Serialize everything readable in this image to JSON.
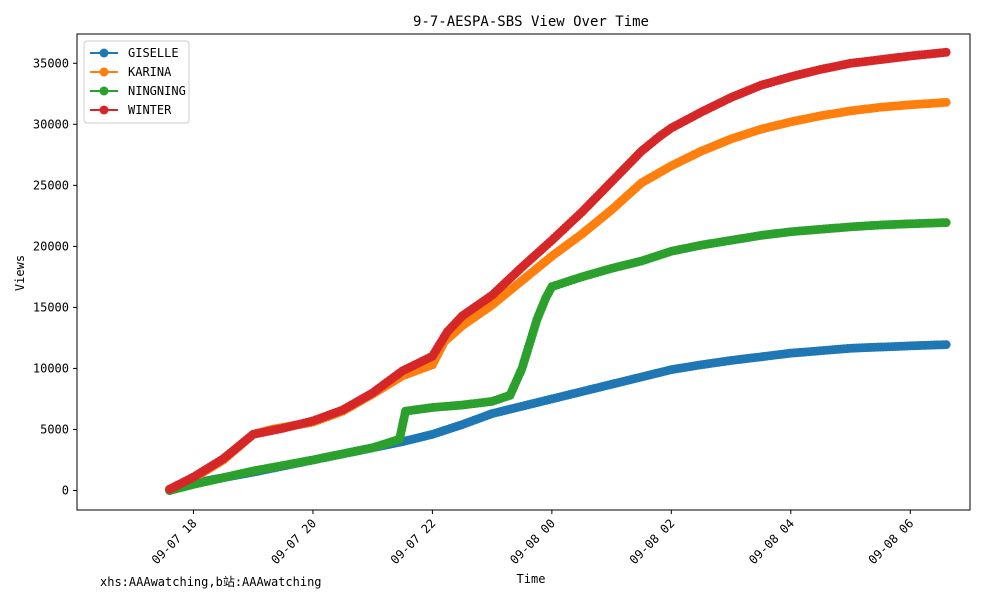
{
  "chart_data": {
    "type": "line",
    "title": "9-7-AESPA-SBS View Over Time",
    "xlabel": "Time",
    "ylabel": "Views",
    "x_ticks": [
      "09-07 18",
      "09-07 20",
      "09-07 22",
      "09-08 00",
      "09-08 02",
      "09-08 04",
      "09-08 06"
    ],
    "x_tick_hours": [
      18,
      20,
      22,
      24,
      26,
      28,
      30
    ],
    "xlim": [
      16.05,
      31.0
    ],
    "ylim": [
      -1600,
      37400
    ],
    "y_ticks": [
      0,
      5000,
      10000,
      15000,
      20000,
      25000,
      30000,
      35000
    ],
    "legend_position": "upper-left",
    "grid": false,
    "series": [
      {
        "name": "GISELLE",
        "color": "#1f77b4",
        "points": [
          [
            17.6,
            0
          ],
          [
            18.0,
            600
          ],
          [
            19.0,
            1500
          ],
          [
            20.0,
            2500
          ],
          [
            21.0,
            3500
          ],
          [
            21.5,
            4000
          ],
          [
            22.0,
            4600
          ],
          [
            22.5,
            5400
          ],
          [
            23.0,
            6300
          ],
          [
            23.5,
            6900
          ],
          [
            24.0,
            7500
          ],
          [
            24.5,
            8100
          ],
          [
            25.0,
            8700
          ],
          [
            25.5,
            9300
          ],
          [
            26.0,
            9900
          ],
          [
            26.5,
            10300
          ],
          [
            27.0,
            10650
          ],
          [
            27.5,
            10950
          ],
          [
            28.0,
            11250
          ],
          [
            28.5,
            11450
          ],
          [
            29.0,
            11650
          ],
          [
            29.5,
            11750
          ],
          [
            30.0,
            11850
          ],
          [
            30.6,
            11950
          ]
        ]
      },
      {
        "name": "KARINA",
        "color": "#ff7f0e",
        "points": [
          [
            17.6,
            100
          ],
          [
            18.0,
            1000
          ],
          [
            18.5,
            2500
          ],
          [
            19.0,
            4600
          ],
          [
            19.3,
            5000
          ],
          [
            20.0,
            5600
          ],
          [
            20.5,
            6500
          ],
          [
            21.0,
            7900
          ],
          [
            21.5,
            9400
          ],
          [
            22.0,
            10300
          ],
          [
            22.2,
            12200
          ],
          [
            22.5,
            13500
          ],
          [
            23.0,
            15200
          ],
          [
            23.5,
            17200
          ],
          [
            24.0,
            19200
          ],
          [
            24.5,
            21000
          ],
          [
            25.0,
            23000
          ],
          [
            25.5,
            25200
          ],
          [
            26.0,
            26600
          ],
          [
            26.5,
            27800
          ],
          [
            27.0,
            28800
          ],
          [
            27.5,
            29600
          ],
          [
            28.0,
            30200
          ],
          [
            28.5,
            30700
          ],
          [
            29.0,
            31100
          ],
          [
            29.5,
            31400
          ],
          [
            30.0,
            31600
          ],
          [
            30.6,
            31800
          ]
        ]
      },
      {
        "name": "NINGNING",
        "color": "#2ca02c",
        "points": [
          [
            17.6,
            0
          ],
          [
            18.0,
            500
          ],
          [
            19.0,
            1600
          ],
          [
            20.0,
            2500
          ],
          [
            21.0,
            3500
          ],
          [
            21.45,
            4200
          ],
          [
            21.55,
            6500
          ],
          [
            22.0,
            6800
          ],
          [
            22.5,
            7000
          ],
          [
            23.0,
            7300
          ],
          [
            23.3,
            7800
          ],
          [
            23.5,
            10000
          ],
          [
            23.75,
            14000
          ],
          [
            23.9,
            15800
          ],
          [
            24.0,
            16700
          ],
          [
            24.5,
            17500
          ],
          [
            25.0,
            18200
          ],
          [
            25.5,
            18800
          ],
          [
            26.0,
            19600
          ],
          [
            26.5,
            20100
          ],
          [
            27.0,
            20500
          ],
          [
            27.5,
            20900
          ],
          [
            28.0,
            21200
          ],
          [
            28.5,
            21400
          ],
          [
            29.0,
            21600
          ],
          [
            29.5,
            21750
          ],
          [
            30.0,
            21850
          ],
          [
            30.6,
            21950
          ]
        ]
      },
      {
        "name": "WINTER",
        "color": "#d62728",
        "points": [
          [
            17.6,
            100
          ],
          [
            18.0,
            1100
          ],
          [
            18.5,
            2600
          ],
          [
            19.0,
            4600
          ],
          [
            19.5,
            5100
          ],
          [
            20.0,
            5700
          ],
          [
            20.5,
            6600
          ],
          [
            21.0,
            8000
          ],
          [
            21.5,
            9800
          ],
          [
            22.0,
            11000
          ],
          [
            22.25,
            13000
          ],
          [
            22.5,
            14300
          ],
          [
            23.0,
            16000
          ],
          [
            23.5,
            18300
          ],
          [
            24.0,
            20500
          ],
          [
            24.5,
            22800
          ],
          [
            25.0,
            25300
          ],
          [
            25.5,
            27800
          ],
          [
            25.8,
            29000
          ],
          [
            26.0,
            29700
          ],
          [
            26.5,
            31000
          ],
          [
            27.0,
            32200
          ],
          [
            27.5,
            33200
          ],
          [
            28.0,
            33900
          ],
          [
            28.5,
            34500
          ],
          [
            29.0,
            35000
          ],
          [
            29.5,
            35300
          ],
          [
            30.0,
            35600
          ],
          [
            30.6,
            35900
          ]
        ]
      }
    ]
  },
  "footer": {
    "note": "xhs:AAAwatching,b站:AAAwatching"
  }
}
